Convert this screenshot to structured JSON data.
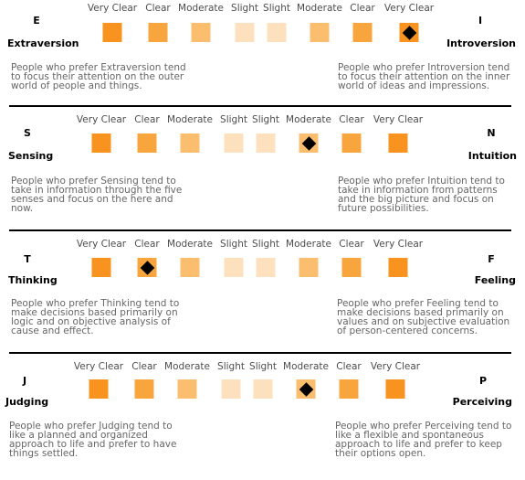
{
  "scale_labels": [
    "Very Clear",
    "Clear",
    "Moderate",
    "Slight",
    "Slight",
    "Moderate",
    "Clear",
    "Very Clear"
  ],
  "square_colors": [
    "#f7931e",
    "#f9a53e",
    "#fbbd6e",
    "#fde0bd",
    "#fde0bd",
    "#fbbd6e",
    "#f9a53e",
    "#f7931e"
  ],
  "dichotomies": [
    {
      "left_letter": "E",
      "left_name": "Extraversion",
      "right_letter": "I",
      "right_name": "Introversion",
      "selected_index": 7,
      "left_desc": "People who prefer Extraversion tend to focus their attention on the outer world of people and things.",
      "right_desc": "People who prefer Introversion tend to focus their attention on the inner world of ideas and impressions."
    },
    {
      "left_letter": "S",
      "left_name": "Sensing",
      "right_letter": "N",
      "right_name": "Intuition",
      "selected_index": 5,
      "left_desc": "People who prefer Sensing tend to take in information through the five senses and focus on the here and now.",
      "right_desc": "People who prefer Intuition tend to take in information from patterns and the big picture and focus on future possibilities."
    },
    {
      "left_letter": "T",
      "left_name": "Thinking",
      "right_letter": "F",
      "right_name": "Feeling",
      "selected_index": 1,
      "left_desc": "People who prefer Thinking tend to make decisions based primarily on logic and on objective analysis of cause and effect.",
      "right_desc": "People who prefer Feeling tend to make decisions based primarily on values and on subjective evaluation of person-centered concerns."
    },
    {
      "left_letter": "J",
      "left_name": "Judging",
      "right_letter": "P",
      "right_name": "Perceiving",
      "selected_index": 5,
      "left_desc": "People who prefer Judging tend to like a planned and organized approach to life and prefer to have things settled.",
      "right_desc": "People who prefer Perceiving tend to like a flexible and spontaneous approach to life and prefer to keep their options open."
    }
  ]
}
